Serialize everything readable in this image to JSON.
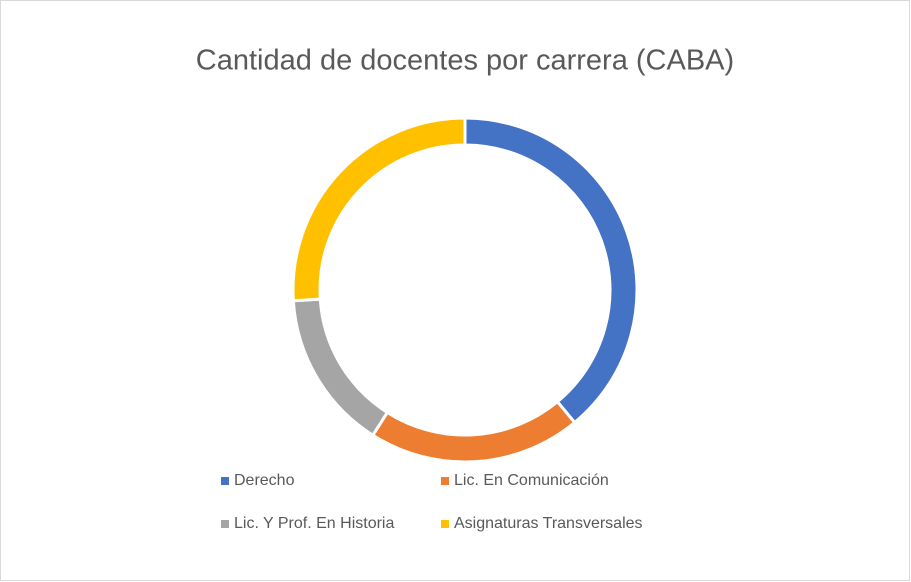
{
  "chart_data": {
    "type": "donut",
    "title": "Cantidad de docentes por carrera (CABA)",
    "categories": [
      "Derecho",
      "Lic. En Comunicación",
      "Lic. Y Prof. En Historia",
      "Asignaturas Transversales"
    ],
    "values": [
      39,
      20,
      15,
      26
    ],
    "colors": [
      "#4472c4",
      "#ed7d31",
      "#a5a5a5",
      "#ffc000"
    ],
    "legend": "bottom"
  }
}
